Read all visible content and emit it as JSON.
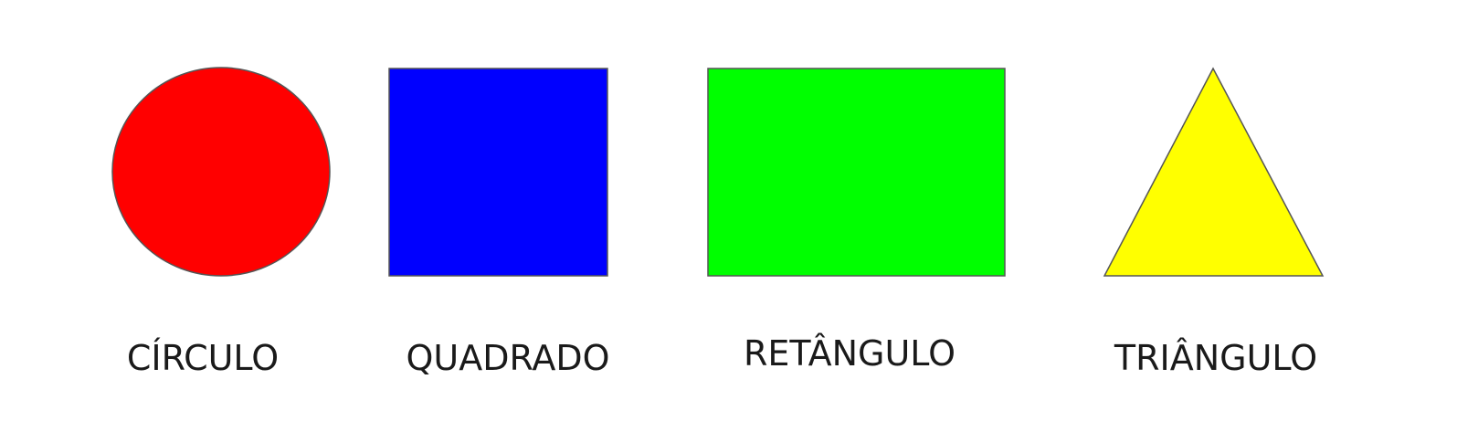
{
  "shapes": [
    {
      "id": "circle",
      "label": "CÍRCULO",
      "fill": "#ff0000"
    },
    {
      "id": "square",
      "label": "QUADRADO",
      "fill": "#0000ff"
    },
    {
      "id": "rectangle",
      "label": "RETÂNGULO",
      "fill": "#00ff00"
    },
    {
      "id": "triangle",
      "label": "TRIÂNGULO",
      "fill": "#ffff00"
    }
  ],
  "stroke": "#555555"
}
